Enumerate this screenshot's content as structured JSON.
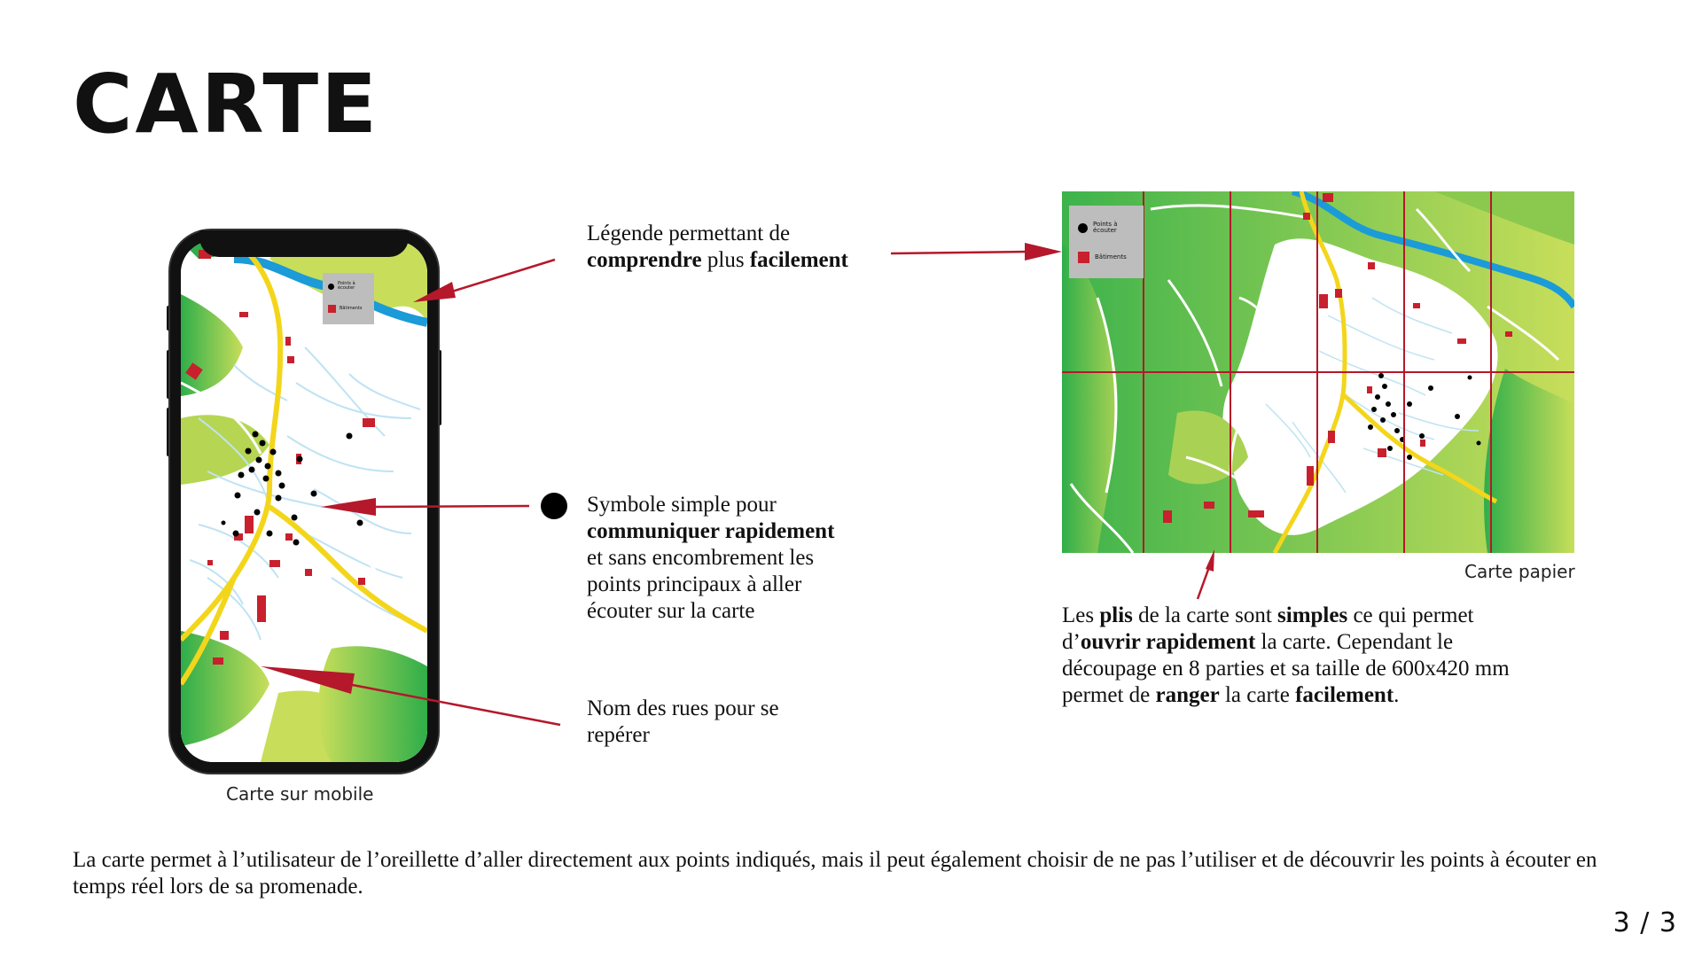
{
  "page": {
    "title": "CARTE",
    "pager": "3 / 3"
  },
  "phone": {
    "caption": "Carte sur mobile",
    "legend": {
      "points": "Points à écouter",
      "buildings": "Bâtiments"
    }
  },
  "paper": {
    "caption": "Carte papier",
    "legend": {
      "points": "Points à écouter",
      "buildings": "Bâtiments"
    }
  },
  "notes": {
    "legend": {
      "line1": "Légende permettant de",
      "b1": "comprendre",
      "t1": " plus ",
      "b2": "facilement"
    },
    "symbol": {
      "line1": "Symbole simple pour",
      "b1": "communiquer rapidement",
      "line2": "et sans encombrement les",
      "line3": "points principaux à aller",
      "line4": "écouter sur la carte"
    },
    "streets": {
      "line1": "Nom des rues pour se",
      "line2": "repérer"
    },
    "folds": {
      "t1": "Les ",
      "b1": "plis",
      "t2": " de la carte sont ",
      "b2": "simples",
      "t3": " ce qui permet",
      "t4": "d’",
      "b3": "ouvrir rapidement",
      "t5": " la carte. Cependant le",
      "t6": "découpage en 8 parties et sa taille de 600x420 mm",
      "t7": "permet de ",
      "b4": "ranger",
      "t8": " la carte ",
      "b5": "facilement",
      "t9": "."
    }
  },
  "footer": {
    "text": "La carte permet à l’utilisateur de l’oreillette d’aller directement aux points indiqués, mais il peut également choisir de ne pas l’utiliser et de découvrir les points à écouter en temps réel lors de sa promenade."
  },
  "colors": {
    "accent_red": "#c8202d",
    "arrow_red": "#b5182b",
    "road_yellow": "#f3d61b",
    "river_blue": "#1b9bd7",
    "green_dark": "#2fae4a",
    "green_light": "#c8de5a",
    "legend_grey": "#bdbdbd"
  }
}
